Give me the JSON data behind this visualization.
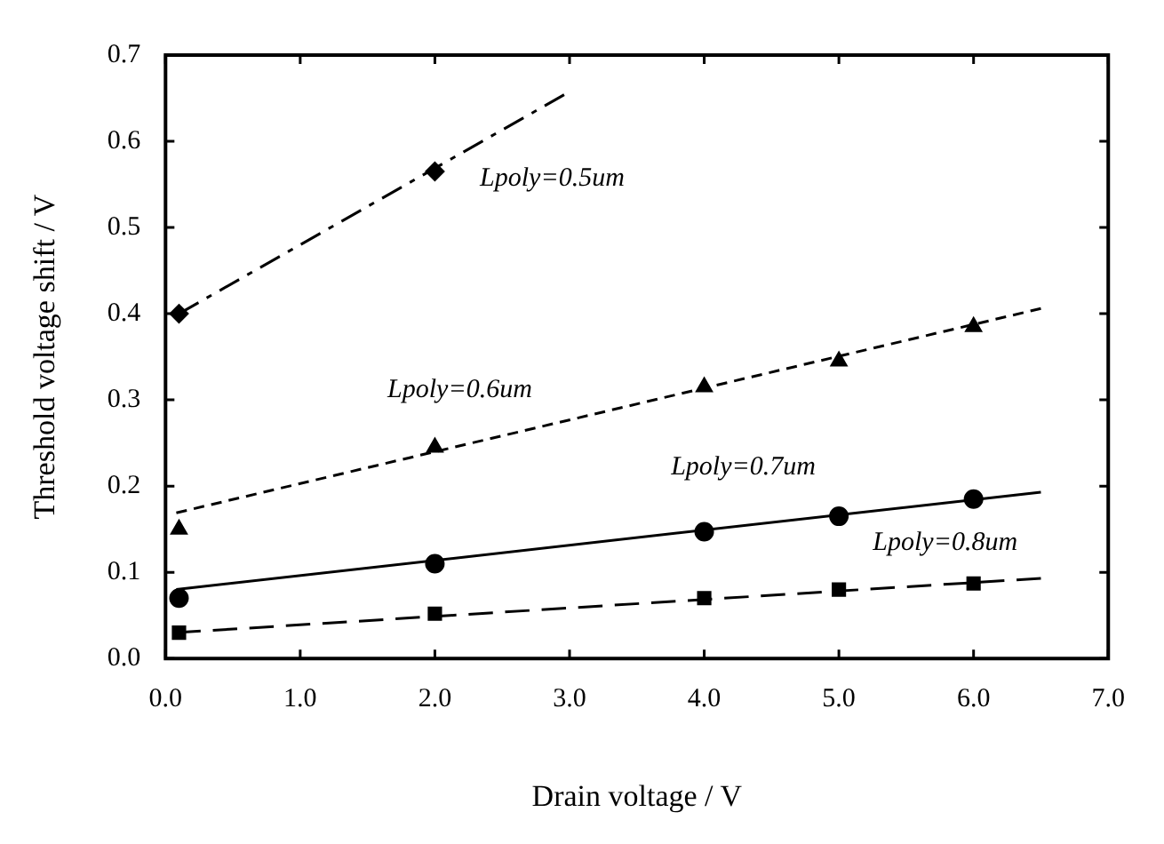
{
  "chart_data": {
    "type": "scatter",
    "xlabel": "Drain voltage / V",
    "ylabel": "Threshold voltage shift / V",
    "xlim": [
      0,
      7
    ],
    "xticks": [
      {
        "value": 0,
        "label": "0.0"
      },
      {
        "value": 1,
        "label": "1.0"
      },
      {
        "value": 2,
        "label": "2.0"
      },
      {
        "value": 3,
        "label": "3.0"
      },
      {
        "value": 4,
        "label": "4.0"
      },
      {
        "value": 5,
        "label": "5.0"
      },
      {
        "value": 6,
        "label": "6.0"
      },
      {
        "value": 7,
        "label": "7.0"
      }
    ],
    "ylim": [
      0,
      0.7
    ],
    "yticks": [
      {
        "value": 0,
        "label": "0.0"
      },
      0.1,
      0.2,
      0.3,
      0.4,
      0.5,
      0.6,
      0.7
    ],
    "grid": false,
    "legend": false,
    "series": [
      {
        "name": "Lpoly=0.5um",
        "marker": "diamond",
        "color": "#000000",
        "x": [
          0.1,
          2
        ],
        "values": [
          0.4,
          0.565
        ]
      },
      {
        "type": "line",
        "marker": "none",
        "line_style": "dashdot",
        "color": "#000000",
        "x": [
          0.1,
          2.96
        ],
        "values": [
          0.4,
          0.654
        ]
      },
      {
        "name": "Lpoly=0.6um",
        "marker": "triangle",
        "color": "#000000",
        "x": [
          0.1,
          2,
          4,
          5,
          6
        ],
        "values": [
          0.15,
          0.245,
          0.315,
          0.345,
          0.385
        ]
      },
      {
        "type": "line",
        "marker": "none",
        "line_style": "dashed",
        "color": "#000000",
        "x": [
          0.08,
          6.5
        ],
        "values": [
          0.169,
          0.406
        ]
      },
      {
        "name": "Lpoly=0.7um",
        "marker": "circle",
        "color": "#000000",
        "x": [
          0.1,
          2,
          4,
          5,
          6
        ],
        "values": [
          0.07,
          0.11,
          0.147,
          0.165,
          0.185
        ]
      },
      {
        "type": "line",
        "marker": "none",
        "line_style": "solid",
        "color": "#000000",
        "x": [
          0.08,
          6.5
        ],
        "values": [
          0.08,
          0.193
        ]
      },
      {
        "name": "Lpoly=0.8um",
        "marker": "square",
        "color": "#000000",
        "x": [
          0.1,
          2,
          4,
          5,
          6
        ],
        "values": [
          0.03,
          0.052,
          0.07,
          0.08,
          0.087
        ]
      },
      {
        "type": "line",
        "marker": "none",
        "line_style": "longdashed",
        "color": "#000000",
        "x": [
          0.08,
          6.5
        ],
        "values": [
          0.03,
          0.093
        ]
      }
    ]
  }
}
